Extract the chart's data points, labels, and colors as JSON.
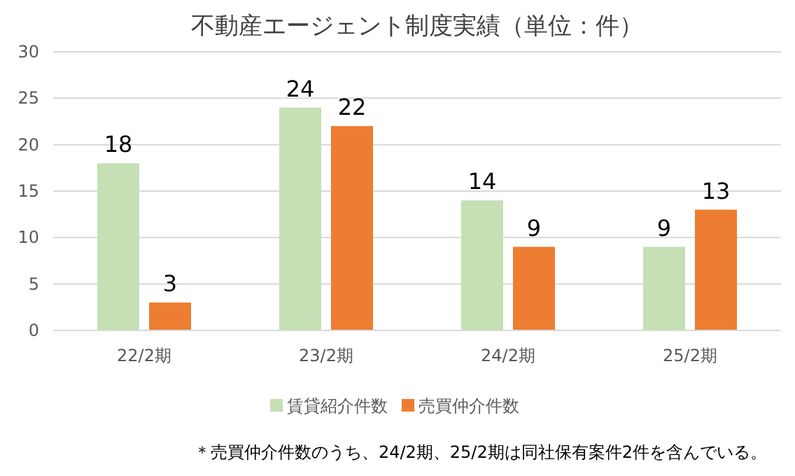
{
  "chart_data": {
    "type": "bar",
    "title": "不動産エージェント制度実績（単位：件）",
    "categories": [
      "22/2期",
      "23/2期",
      "24/2期",
      "25/2期"
    ],
    "series": [
      {
        "name": "賃貸紹介件数",
        "color": "#c5e0b4",
        "values": [
          18,
          24,
          14,
          9
        ]
      },
      {
        "name": "売買仲介件数",
        "color": "#ed7d31",
        "values": [
          3,
          22,
          9,
          13
        ]
      }
    ],
    "ylim": [
      0,
      30
    ],
    "yticks": [
      0,
      5,
      10,
      15,
      20,
      25,
      30
    ],
    "grid": "y",
    "data_labels": true,
    "legend": "bottom",
    "annotations": [
      "＊売買仲介件数のうち、24/2期、25/2期は同社保有案件2件を含んでいる。"
    ]
  }
}
